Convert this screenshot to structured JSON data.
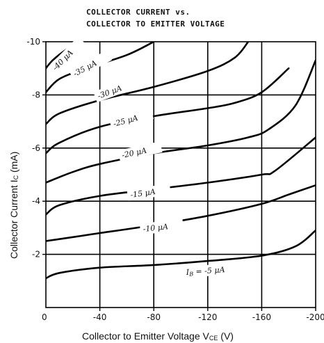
{
  "chart_data": {
    "type": "line",
    "title": [
      "COLLECTOR CURRENT vs.",
      "COLLECTOR TO EMITTER VOLTAGE"
    ],
    "xlabel": "Collector  to Emitter Voltage  V",
    "xlabel_sub": "CE",
    "xlabel_unit": " (V)",
    "ylabel": "Collector Current  I",
    "ylabel_sub": "C",
    "ylabel_unit": " (mA)",
    "xlim": [
      0,
      -200
    ],
    "ylim": [
      0,
      -10
    ],
    "x_ticks": [
      {
        "value": -40,
        "label": "-40"
      },
      {
        "value": -80,
        "label": "-80"
      },
      {
        "value": -120,
        "label": "-120"
      },
      {
        "value": -160,
        "label": "-160"
      },
      {
        "value": -200,
        "label": "-200"
      }
    ],
    "y_ticks": [
      {
        "value": -2,
        "label": "-2"
      },
      {
        "value": -4,
        "label": "-4"
      },
      {
        "value": -6,
        "label": "-6"
      },
      {
        "value": -8,
        "label": "-8"
      },
      {
        "value": -10,
        "label": "-10"
      }
    ],
    "origin_label": "0",
    "grid": true,
    "series": [
      {
        "label": "I",
        "label_sub": "B",
        "label_rest": " = -5  μA",
        "points": [
          [
            0,
            -1.1
          ],
          [
            -10,
            -1.3
          ],
          [
            -40,
            -1.5
          ],
          [
            -80,
            -1.6
          ],
          [
            -120,
            -1.75
          ],
          [
            -160,
            -1.95
          ],
          [
            -185,
            -2.3
          ],
          [
            -200,
            -2.9
          ]
        ]
      },
      {
        "label": "-10  μA",
        "points": [
          [
            0,
            -2.5
          ],
          [
            -20,
            -2.65
          ],
          [
            -40,
            -2.8
          ],
          [
            -80,
            -3.1
          ],
          [
            -120,
            -3.45
          ],
          [
            -160,
            -3.9
          ],
          [
            -180,
            -4.25
          ],
          [
            -200,
            -4.6
          ]
        ]
      },
      {
        "label": "-15  μA",
        "points": [
          [
            0,
            -3.5
          ],
          [
            -10,
            -3.85
          ],
          [
            -40,
            -4.2
          ],
          [
            -80,
            -4.45
          ],
          [
            -120,
            -4.7
          ],
          [
            -160,
            -5.0
          ],
          [
            -170,
            -5.15
          ],
          [
            -200,
            -6.4
          ]
        ]
      },
      {
        "label": "-20  μA",
        "points": [
          [
            0,
            -4.7
          ],
          [
            -20,
            -5.1
          ],
          [
            -40,
            -5.4
          ],
          [
            -80,
            -5.8
          ],
          [
            -120,
            -6.1
          ],
          [
            -150,
            -6.4
          ],
          [
            -165,
            -6.7
          ],
          [
            -185,
            -7.6
          ],
          [
            -200,
            -9.3
          ]
        ]
      },
      {
        "label": "-25  μA",
        "points": [
          [
            0,
            -5.8
          ],
          [
            -10,
            -6.2
          ],
          [
            -40,
            -6.8
          ],
          [
            -80,
            -7.2
          ],
          [
            -120,
            -7.5
          ],
          [
            -140,
            -7.7
          ],
          [
            -160,
            -8.1
          ],
          [
            -180,
            -9.0
          ]
        ]
      },
      {
        "label": "-30  μA",
        "points": [
          [
            0,
            -6.9
          ],
          [
            -10,
            -7.3
          ],
          [
            -40,
            -7.8
          ],
          [
            -80,
            -8.3
          ],
          [
            -120,
            -8.9
          ],
          [
            -140,
            -9.4
          ],
          [
            -150,
            -10.0
          ]
        ]
      },
      {
        "label": "-35  μA",
        "points": [
          [
            0,
            -8.1
          ],
          [
            -10,
            -8.6
          ],
          [
            -30,
            -9.0
          ],
          [
            -60,
            -9.5
          ],
          [
            -80,
            -10.0
          ]
        ]
      },
      {
        "label": "-40  μA",
        "points": [
          [
            0,
            -9.0
          ],
          [
            -5,
            -9.3
          ],
          [
            -15,
            -9.7
          ],
          [
            -25,
            -10.0
          ]
        ]
      }
    ]
  }
}
